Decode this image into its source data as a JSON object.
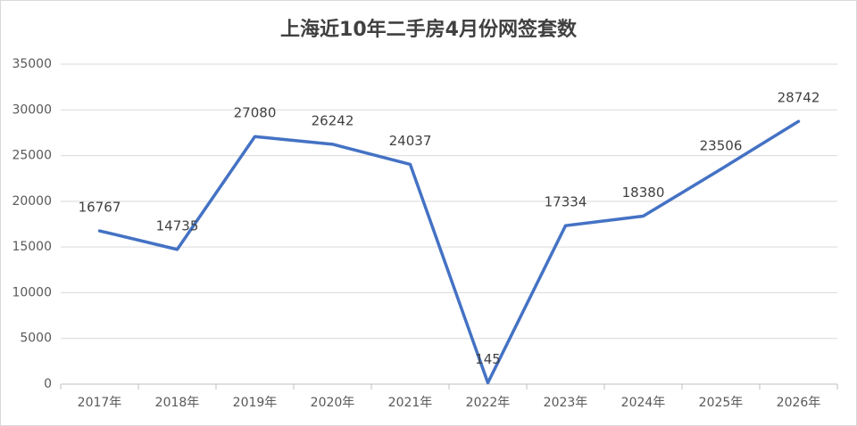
{
  "chart_data": {
    "type": "line",
    "title": "上海近10年二手房4月份网签套数",
    "categories": [
      "2017年",
      "2018年",
      "2019年",
      "2020年",
      "2021年",
      "2022年",
      "2023年",
      "2024年",
      "2025年",
      "2026年"
    ],
    "values": [
      16767,
      14735,
      27080,
      26242,
      24037,
      145,
      17334,
      18380,
      23506,
      28742
    ],
    "color": "#4472c4",
    "ylim": [
      0,
      35000
    ],
    "yticks": [
      0,
      5000,
      10000,
      15000,
      20000,
      25000,
      30000,
      35000
    ],
    "grid": true
  }
}
